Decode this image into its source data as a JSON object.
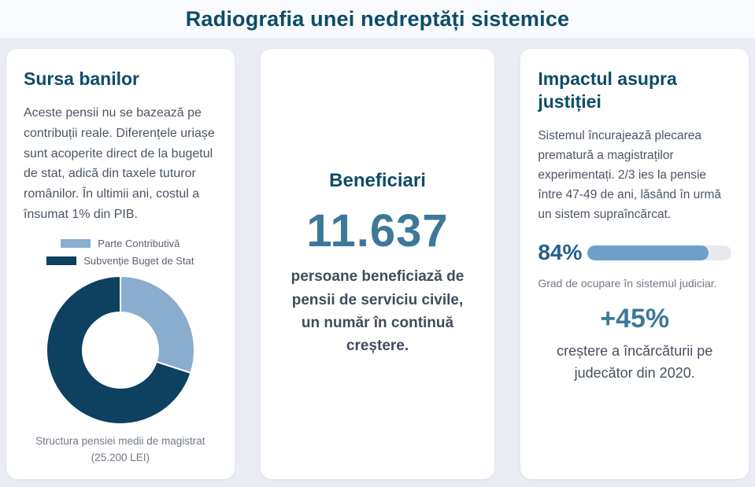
{
  "page": {
    "title": "Radiografia unei nedreptăți sistemice"
  },
  "colors": {
    "page_bg": "#e9edf3",
    "header_bg": "#f8fafd",
    "card_bg": "#ffffff",
    "heading_teal": "#0d4c66",
    "steel_blue": "#3e7899",
    "slate_text": "#4b5565",
    "caption_gray": "#717a86",
    "bar_track": "#e7e9ee",
    "light_blue_bar": "#6f9fc9"
  },
  "left_card": {
    "title": "Sursa banilor",
    "body": "Aceste pensii nu se bazează pe contribuții reale. Diferențele uriașe sunt acoperite direct de la bugetul de stat, adică din taxele tuturor românilor. În ultimii ani, costul a însumat 1% din PIB.",
    "caption_line1": "Structura pensiei medii de magistrat",
    "caption_line2": "(25.200 LEI)"
  },
  "chart_data": {
    "type": "pie",
    "donut": true,
    "cutout_ratio": 0.51,
    "start_angle_deg": 0,
    "clockwise": true,
    "title": "Structura pensiei medii de magistrat (25.200 LEI)",
    "labels": [
      "Parte Contributivă",
      "Subvenție Buget de Stat"
    ],
    "values": [
      30,
      70
    ],
    "unit": "percent",
    "colors": [
      "#8aadce",
      "#0d415f"
    ],
    "legend_position": "top",
    "slice_border_color": "#ffffff"
  },
  "center_card": {
    "title": "Beneficiari",
    "big_number": "11.637",
    "description": "persoane beneficiază de pensii de serviciu civile, un număr în continuă creștere."
  },
  "right_card": {
    "title": "Impactul asupra justiției",
    "body": "Sistemul încurajează plecarea prematură a magistraților experimentați. 2/3 ies la pensie între 47-49 de ani, lăsând în urmă un sistem supraîncărcat.",
    "occupancy": {
      "label": "84%",
      "percent_value": 84,
      "caption": "Grad de ocupare în sistemul judiciar."
    },
    "increase": {
      "value": "+45%",
      "caption": "creștere a încărcăturii pe judecător din 2020."
    }
  }
}
